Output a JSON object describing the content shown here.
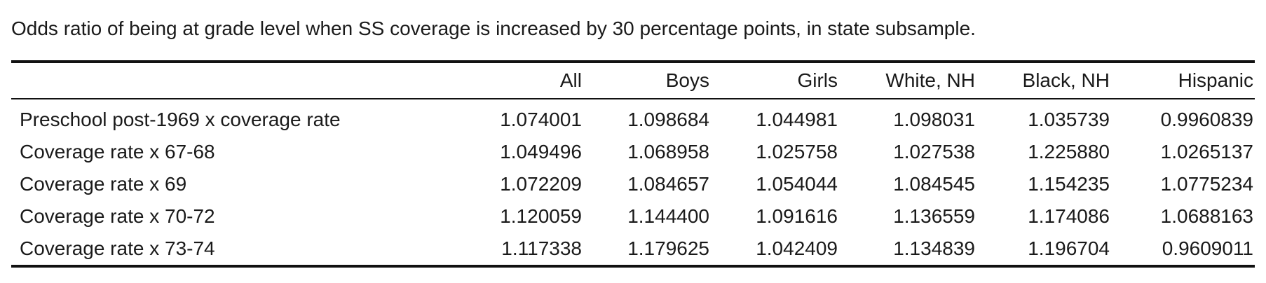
{
  "caption": "Odds ratio of being at grade level when SS coverage is increased by 30 percentage points, in state subsample.",
  "table": {
    "headers": [
      "",
      "All",
      "Boys",
      "Girls",
      "White, NH",
      "Black, NH",
      "Hispanic"
    ],
    "rows": [
      [
        "Preschool post-1969 x coverage rate",
        "1.074001",
        "1.098684",
        "1.044981",
        "1.098031",
        "1.035739",
        "0.9960839"
      ],
      [
        "Coverage rate x 67-68",
        "1.049496",
        "1.068958",
        "1.025758",
        "1.027538",
        "1.225880",
        "1.0265137"
      ],
      [
        "Coverage rate x 69",
        "1.072209",
        "1.084657",
        "1.054044",
        "1.084545",
        "1.154235",
        "1.0775234"
      ],
      [
        "Coverage rate x 70-72",
        "1.120059",
        "1.144400",
        "1.091616",
        "1.136559",
        "1.174086",
        "1.0688163"
      ],
      [
        "Coverage rate x 73-74",
        "1.117338",
        "1.179625",
        "1.042409",
        "1.134839",
        "1.196704",
        "0.9609011"
      ]
    ]
  }
}
